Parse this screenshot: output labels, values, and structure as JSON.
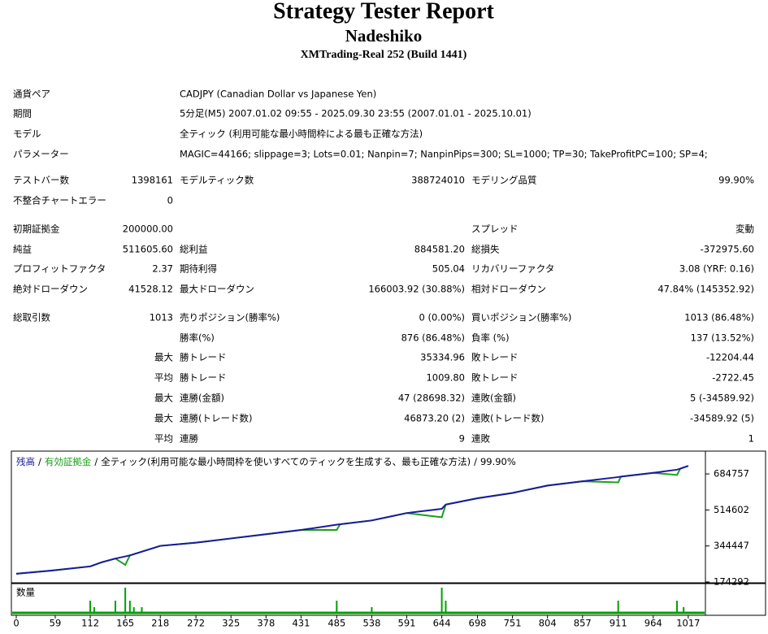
{
  "header": {
    "title": "Strategy Tester Report",
    "subtitle": "Nadeshiko",
    "build": "XMTrading-Real 252 (Build 1441)"
  },
  "settings": [
    [
      "通貨ペア",
      "CADJPY (Canadian Dollar vs Japanese Yen)"
    ],
    [
      "期間",
      "5分足(M5) 2007.01.02 09:55 - 2025.09.30 23:55 (2007.01.01 - 2025.10.01)"
    ],
    [
      "モデル",
      "全ティック (利用可能な最小時間枠による最も正確な方法)"
    ],
    [
      "パラメーター",
      "MAGIC=44166; slippage=3; Lots=0.01; Nanpin=7; NanpinPips=300; SL=1000; TP=30; TakeProfitPC=100; SP=4;"
    ]
  ],
  "stats": [
    [
      "テストバー数",
      "1398161",
      "モデルティック数",
      "388724010",
      "モデリング品質",
      "99.90%"
    ],
    [
      "不整合チャートエラー",
      "0",
      null,
      null,
      null,
      null
    ],
    [
      "初期証拠金",
      "200000.00",
      null,
      null,
      "スプレッド",
      "変動"
    ],
    [
      "純益",
      "511605.60",
      "総利益",
      "884581.20",
      "総損失",
      "-372975.60"
    ],
    [
      "プロフィットファクタ",
      "2.37",
      "期待利得",
      "505.04",
      "リカバリーファクタ",
      "3.08 (YRF: 0.16)"
    ],
    [
      "絶対ドローダウン",
      "41528.12",
      "最大ドローダウン",
      "166003.92 (30.88%)",
      "相対ドローダウン",
      "47.84% (145352.92)"
    ],
    [
      "総取引数",
      "1013",
      "売りポジション(勝率%)",
      "0 (0.00%)",
      "買いポジション(勝率%)",
      "1013 (86.48%)"
    ],
    [
      null,
      null,
      "勝率(%)",
      "876 (86.48%)",
      "負率 (%)",
      "137 (13.52%)"
    ],
    [
      null,
      "最大",
      "勝トレード",
      "35334.96",
      "敗トレード",
      "-12204.44"
    ],
    [
      null,
      "平均",
      "勝トレード",
      "1009.80",
      "敗トレード",
      "-2722.45"
    ],
    [
      null,
      "最大",
      "連勝(金額)",
      "47 (28698.32)",
      "連敗(金額)",
      "5 (-34589.92)"
    ],
    [
      null,
      "最大",
      "連勝(トレード数)",
      "46873.20 (2)",
      "連敗(トレード数)",
      "-34589.92 (5)"
    ],
    [
      null,
      "平均",
      "連勝",
      "9",
      "連敗",
      "1"
    ]
  ],
  "chart_data": {
    "type": "line",
    "separator": "/",
    "caption": "全ティック(利用可能な最小時間枠を使いすべてのティックを生成する、最も正確な方法)",
    "quality": "99.90%",
    "x": [
      0,
      53,
      112,
      130,
      150,
      165,
      172,
      218,
      272,
      325,
      378,
      431,
      485,
      490,
      538,
      591,
      644,
      650,
      698,
      751,
      804,
      857,
      911,
      915,
      964,
      1000,
      1005,
      1017
    ],
    "series": [
      {
        "name": "残高",
        "color": "#1a1a9c",
        "values": [
          213000,
          228000,
          248000,
          268000,
          285000,
          295000,
          300000,
          345000,
          360000,
          380000,
          400000,
          420000,
          445000,
          447000,
          465000,
          500000,
          520000,
          540000,
          570000,
          595000,
          630000,
          650000,
          670000,
          672000,
          690000,
          705000,
          710000,
          723000
        ]
      },
      {
        "name": "有効証拠金",
        "color": "#1aa01a",
        "values": [
          213000,
          228000,
          248000,
          268000,
          285000,
          255000,
          300000,
          345000,
          360000,
          380000,
          400000,
          420000,
          420000,
          447000,
          465000,
          500000,
          480000,
          540000,
          570000,
          595000,
          630000,
          650000,
          645000,
          672000,
          690000,
          680000,
          710000,
          723000
        ]
      }
    ],
    "xlim": [
      0,
      1043
    ],
    "ylim": [
      174292,
      785000
    ],
    "xticks": [
      0,
      59,
      112,
      165,
      218,
      272,
      325,
      378,
      431,
      485,
      538,
      591,
      644,
      698,
      751,
      804,
      857,
      911,
      964,
      1017
    ],
    "yticks": [
      174292,
      344447,
      514602,
      684757
    ],
    "volume": {
      "label": "数量",
      "color": "#00a000",
      "x": [
        112,
        118,
        150,
        165,
        172,
        178,
        190,
        485,
        538,
        644,
        650,
        911,
        1000,
        1010
      ],
      "values": [
        0.64,
        0.32,
        0.64,
        1.28,
        0.64,
        0.32,
        0.32,
        0.64,
        0.32,
        1.28,
        0.64,
        0.64,
        0.64,
        0.32
      ]
    }
  }
}
